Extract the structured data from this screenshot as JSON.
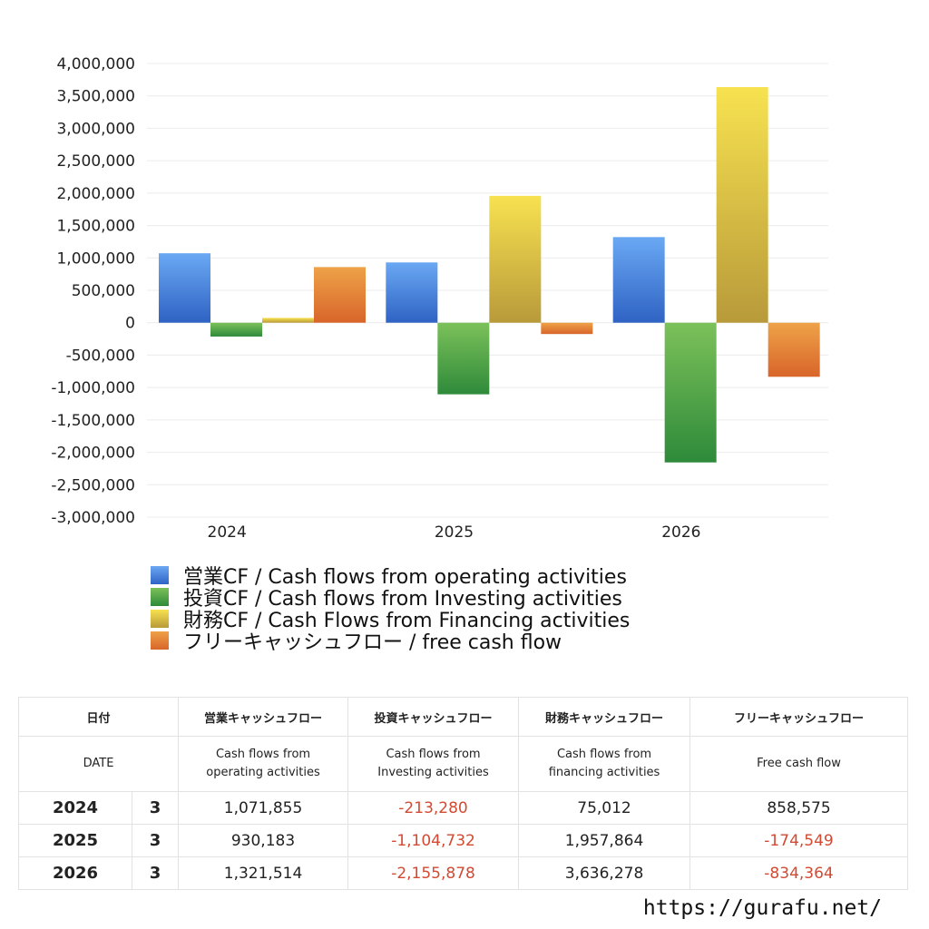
{
  "chart_data": {
    "type": "bar",
    "categories": [
      "2024",
      "2025",
      "2026"
    ],
    "series": [
      {
        "name": "営業CF / Cash flows from operating activities",
        "values": [
          1071855,
          930183,
          1321514
        ],
        "color_top": "#6aa8f3",
        "color_bottom": "#2f63c4"
      },
      {
        "name": "投資CF / Cash flows from Investing activities",
        "values": [
          -213280,
          -1104732,
          -2155878
        ],
        "color_top": "#7cc15a",
        "color_bottom": "#2e8a3a"
      },
      {
        "name": "財務CF / Cash Flows from Financing activities",
        "values": [
          75012,
          1957864,
          3636278
        ],
        "color_top": "#f7e250",
        "color_bottom": "#b89a3a"
      },
      {
        "name": "フリーキャッシュフロー / free cash flow",
        "values": [
          858575,
          -174549,
          -834364
        ],
        "color_top": "#eea248",
        "color_bottom": "#d8652a"
      }
    ],
    "ylim": [
      -3000000,
      4000000
    ],
    "ytick_step": 500000,
    "grid": true,
    "legend_position": "bottom"
  },
  "table": {
    "headers_jp": [
      "日付",
      "営業キャッシュフロー",
      "投資キャッシュフロー",
      "財務キャッシュフロー",
      "フリーキャッシュフロー"
    ],
    "headers_en": [
      "DATE",
      "Cash flows from operating activities",
      "Cash flows from Investing activities",
      "Cash flows from financing activities",
      "Free cash flow"
    ],
    "rows": [
      {
        "year": "2024",
        "month": "3",
        "operating": "1,071,855",
        "investing": "-213,280",
        "financing": "75,012",
        "free": "858,575"
      },
      {
        "year": "2025",
        "month": "3",
        "operating": "930,183",
        "investing": "-1,104,732",
        "financing": "1,957,864",
        "free": "-174,549"
      },
      {
        "year": "2026",
        "month": "3",
        "operating": "1,321,514",
        "investing": "-2,155,878",
        "financing": "3,636,278",
        "free": "-834,364"
      }
    ]
  },
  "footer": {
    "url": "https://gurafu.net/"
  }
}
